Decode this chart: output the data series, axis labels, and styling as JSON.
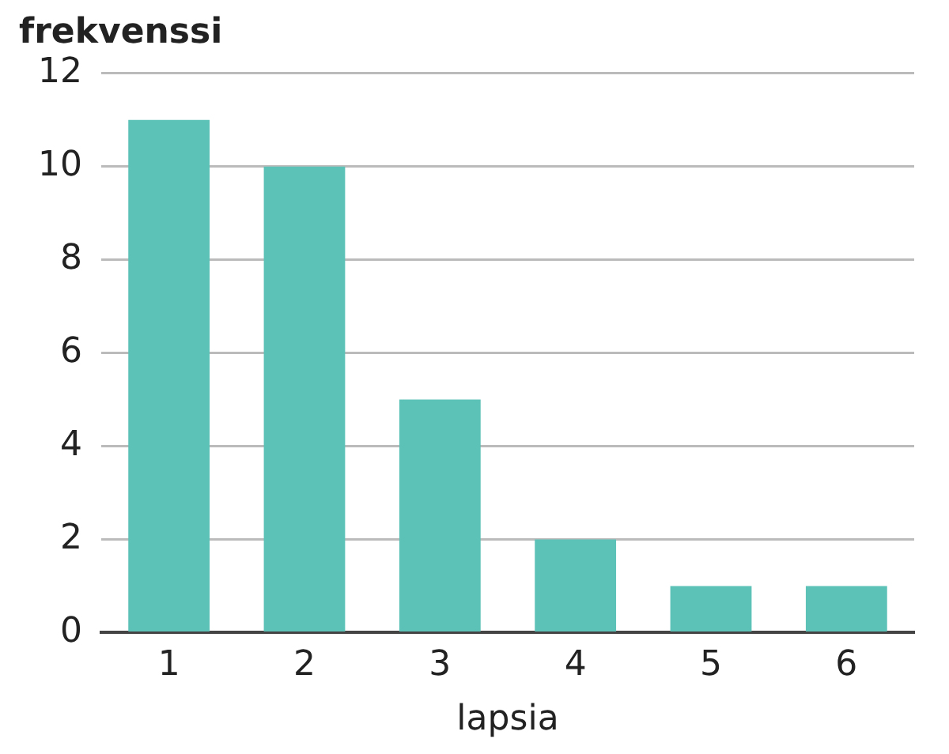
{
  "chart_data": {
    "type": "bar",
    "ylabel": "frekvenssi",
    "xlabel": "lapsia",
    "categories": [
      "1",
      "2",
      "3",
      "4",
      "5",
      "6"
    ],
    "values": [
      11,
      10,
      5,
      2,
      1,
      1
    ],
    "color": "#5cc1b7",
    "ylim": [
      0,
      12
    ],
    "yticks": [
      0,
      2,
      4,
      6,
      8,
      10,
      12
    ],
    "grid": "y",
    "legend": false
  }
}
